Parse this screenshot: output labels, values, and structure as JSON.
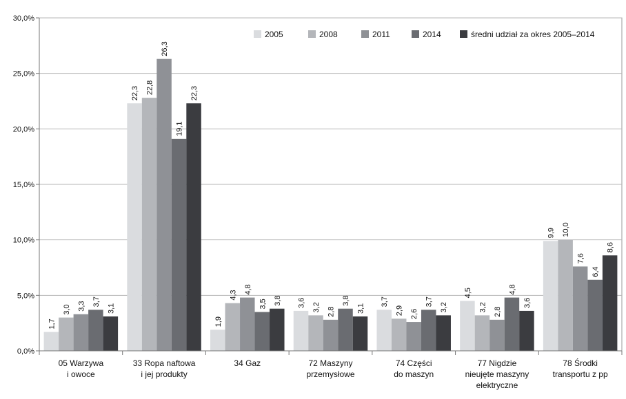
{
  "chart_data": {
    "type": "bar",
    "title": "",
    "xlabel": "",
    "ylabel": "",
    "ylim": [
      0,
      30
    ],
    "y_ticks": [
      "0,0%",
      "5,0%",
      "10,0%",
      "15,0%",
      "20,0%",
      "25,0%",
      "30,0%"
    ],
    "grid": "horizontal",
    "legend_position": "top-right",
    "categories": [
      [
        "05 Warzywa",
        "i owoce"
      ],
      [
        "33 Ropa naftowa",
        "i jej produkty"
      ],
      [
        "34 Gaz"
      ],
      [
        "72 Maszyny",
        "przemysłowe"
      ],
      [
        "74 Części",
        "do maszyn"
      ],
      [
        "77 Nigdzie",
        "nieujęte maszyny",
        "elektryczne"
      ],
      [
        "78 Środki",
        "transportu z pp"
      ]
    ],
    "series": [
      {
        "name": "2005",
        "color": "#dadcdf",
        "values": [
          1.7,
          22.3,
          1.9,
          3.6,
          3.7,
          4.5,
          9.9
        ],
        "labels": [
          "1,7",
          "22,3",
          "1,9",
          "3,6",
          "3,7",
          "4,5",
          "9,9"
        ]
      },
      {
        "name": "2008",
        "color": "#b4b6ba",
        "values": [
          3.0,
          22.8,
          4.3,
          3.2,
          2.9,
          3.2,
          10.0
        ],
        "labels": [
          "3,0",
          "22,8",
          "4,3",
          "3,2",
          "2,9",
          "3,2",
          "10,0"
        ]
      },
      {
        "name": "2011",
        "color": "#8f9196",
        "values": [
          3.3,
          26.3,
          4.8,
          2.8,
          2.6,
          2.8,
          7.6
        ],
        "labels": [
          "3,3",
          "26,3",
          "4,8",
          "2,8",
          "2,6",
          "2,8",
          "7,6"
        ]
      },
      {
        "name": "2014",
        "color": "#6a6c71",
        "values": [
          3.7,
          19.1,
          3.5,
          3.8,
          3.7,
          4.8,
          6.4
        ],
        "labels": [
          "3,7",
          "19,1",
          "3,5",
          "3,8",
          "3,7",
          "4,8",
          "6,4"
        ]
      },
      {
        "name": "średni udział za okres 2005–2014",
        "color": "#3b3c40",
        "values": [
          3.1,
          22.3,
          3.8,
          3.1,
          3.2,
          3.6,
          8.6
        ],
        "labels": [
          "3,1",
          "22,3",
          "3,8",
          "3,1",
          "3,2",
          "3,6",
          "8,6"
        ]
      }
    ]
  }
}
